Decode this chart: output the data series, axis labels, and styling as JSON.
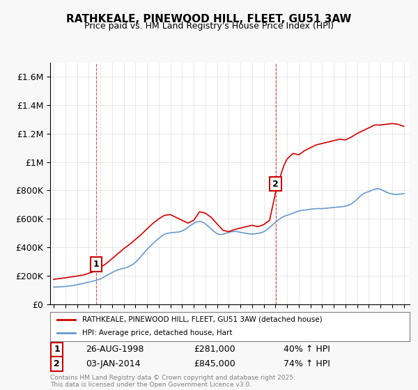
{
  "title": "RATHKEALE, PINEWOOD HILL, FLEET, GU51 3AW",
  "subtitle": "Price paid vs. HM Land Registry's House Price Index (HPI)",
  "legend_line1": "RATHKEALE, PINEWOOD HILL, FLEET, GU51 3AW (detached house)",
  "legend_line2": "HPI: Average price, detached house, Hart",
  "annotation1_label": "1",
  "annotation1_date": "26-AUG-1998",
  "annotation1_price": "£281,000",
  "annotation1_hpi": "40% ↑ HPI",
  "annotation1_year": 1998.65,
  "annotation1_value": 281000,
  "annotation2_label": "2",
  "annotation2_date": "03-JAN-2014",
  "annotation2_price": "£845,000",
  "annotation2_hpi": "74% ↑ HPI",
  "annotation2_year": 2014.01,
  "annotation2_value": 845000,
  "footer": "Contains HM Land Registry data © Crown copyright and database right 2025.\nThis data is licensed under the Open Government Licence v3.0.",
  "red_color": "#cc0000",
  "blue_color": "#6699cc",
  "ylim": [
    0,
    1700000
  ],
  "xlim_start": 1995.0,
  "xlim_end": 2025.5,
  "hpi_data": {
    "years": [
      1995.0,
      1995.25,
      1995.5,
      1995.75,
      1996.0,
      1996.25,
      1996.5,
      1996.75,
      1997.0,
      1997.25,
      1997.5,
      1997.75,
      1998.0,
      1998.25,
      1998.5,
      1998.75,
      1999.0,
      1999.25,
      1999.5,
      1999.75,
      2000.0,
      2000.25,
      2000.5,
      2000.75,
      2001.0,
      2001.25,
      2001.5,
      2001.75,
      2002.0,
      2002.25,
      2002.5,
      2002.75,
      2003.0,
      2003.25,
      2003.5,
      2003.75,
      2004.0,
      2004.25,
      2004.5,
      2004.75,
      2005.0,
      2005.25,
      2005.5,
      2005.75,
      2006.0,
      2006.25,
      2006.5,
      2006.75,
      2007.0,
      2007.25,
      2007.5,
      2007.75,
      2008.0,
      2008.25,
      2008.5,
      2008.75,
      2009.0,
      2009.25,
      2009.5,
      2009.75,
      2010.0,
      2010.25,
      2010.5,
      2010.75,
      2011.0,
      2011.25,
      2011.5,
      2011.75,
      2012.0,
      2012.25,
      2012.5,
      2012.75,
      2013.0,
      2013.25,
      2013.5,
      2013.75,
      2014.0,
      2014.25,
      2014.5,
      2014.75,
      2015.0,
      2015.25,
      2015.5,
      2015.75,
      2016.0,
      2016.25,
      2016.5,
      2016.75,
      2017.0,
      2017.25,
      2017.5,
      2017.75,
      2018.0,
      2018.25,
      2018.5,
      2018.75,
      2019.0,
      2019.25,
      2019.5,
      2019.75,
      2020.0,
      2020.25,
      2020.5,
      2020.75,
      2021.0,
      2021.25,
      2021.5,
      2021.75,
      2022.0,
      2022.25,
      2022.5,
      2022.75,
      2023.0,
      2023.25,
      2023.5,
      2023.75,
      2024.0,
      2024.25,
      2024.5,
      2024.75,
      2025.0
    ],
    "values": [
      120000,
      121000,
      122000,
      123000,
      125000,
      127000,
      130000,
      133000,
      137000,
      141000,
      145000,
      150000,
      155000,
      160000,
      165000,
      170000,
      178000,
      188000,
      200000,
      212000,
      222000,
      232000,
      242000,
      248000,
      252000,
      258000,
      268000,
      278000,
      295000,
      315000,
      338000,
      362000,
      385000,
      405000,
      425000,
      445000,
      462000,
      478000,
      492000,
      498000,
      502000,
      504000,
      506000,
      508000,
      515000,
      525000,
      540000,
      555000,
      568000,
      578000,
      582000,
      578000,
      565000,
      548000,
      530000,
      510000,
      495000,
      490000,
      492000,
      498000,
      505000,
      510000,
      512000,
      510000,
      505000,
      502000,
      498000,
      495000,
      493000,
      495000,
      498000,
      502000,
      510000,
      522000,
      538000,
      558000,
      575000,
      592000,
      608000,
      618000,
      625000,
      632000,
      640000,
      648000,
      655000,
      660000,
      662000,
      665000,
      668000,
      670000,
      672000,
      672000,
      672000,
      674000,
      676000,
      678000,
      680000,
      682000,
      684000,
      686000,
      690000,
      695000,
      705000,
      720000,
      738000,
      758000,
      775000,
      785000,
      792000,
      800000,
      808000,
      812000,
      808000,
      798000,
      788000,
      780000,
      775000,
      772000,
      772000,
      775000,
      778000
    ]
  },
  "red_data": {
    "years": [
      1995.0,
      1995.5,
      1996.0,
      1996.5,
      1997.0,
      1997.5,
      1997.75,
      1998.0,
      1998.5,
      1998.75,
      1999.0,
      1999.5,
      2000.0,
      2000.5,
      2001.0,
      2001.5,
      2002.0,
      2002.5,
      2003.0,
      2003.5,
      2004.0,
      2004.5,
      2005.0,
      2005.5,
      2006.0,
      2006.5,
      2007.0,
      2007.25,
      2007.5,
      2008.0,
      2008.5,
      2009.0,
      2009.5,
      2010.0,
      2010.5,
      2011.0,
      2011.5,
      2012.0,
      2012.5,
      2013.0,
      2013.5,
      2014.0,
      2014.25,
      2014.5,
      2014.75,
      2015.0,
      2015.5,
      2016.0,
      2016.5,
      2017.0,
      2017.5,
      2018.0,
      2018.5,
      2019.0,
      2019.5,
      2020.0,
      2020.5,
      2021.0,
      2021.5,
      2022.0,
      2022.5,
      2023.0,
      2023.5,
      2024.0,
      2024.5,
      2025.0
    ],
    "values": [
      175000,
      180000,
      185000,
      192000,
      198000,
      205000,
      210000,
      218000,
      230000,
      245000,
      260000,
      285000,
      320000,
      355000,
      390000,
      420000,
      455000,
      490000,
      530000,
      568000,
      600000,
      625000,
      630000,
      610000,
      590000,
      570000,
      590000,
      620000,
      650000,
      640000,
      610000,
      565000,
      520000,
      510000,
      525000,
      535000,
      545000,
      555000,
      545000,
      560000,
      590000,
      780000,
      845000,
      920000,
      980000,
      1020000,
      1060000,
      1050000,
      1080000,
      1100000,
      1120000,
      1130000,
      1140000,
      1150000,
      1160000,
      1155000,
      1175000,
      1200000,
      1220000,
      1240000,
      1260000,
      1260000,
      1265000,
      1270000,
      1265000,
      1250000
    ]
  },
  "yticks": [
    0,
    200000,
    400000,
    600000,
    800000,
    1000000,
    1200000,
    1400000,
    1600000
  ],
  "ytick_labels": [
    "£0",
    "£200K",
    "£400K",
    "£600K",
    "£800K",
    "£1M",
    "£1.2M",
    "£1.4M",
    "£1.6M"
  ],
  "xticks": [
    1995,
    1996,
    1997,
    1998,
    1999,
    2000,
    2001,
    2002,
    2003,
    2004,
    2005,
    2006,
    2007,
    2008,
    2009,
    2010,
    2011,
    2012,
    2013,
    2014,
    2015,
    2016,
    2017,
    2018,
    2019,
    2020,
    2021,
    2022,
    2023,
    2024,
    2025
  ],
  "background_color": "#f8f8f8",
  "plot_bg_color": "#ffffff"
}
